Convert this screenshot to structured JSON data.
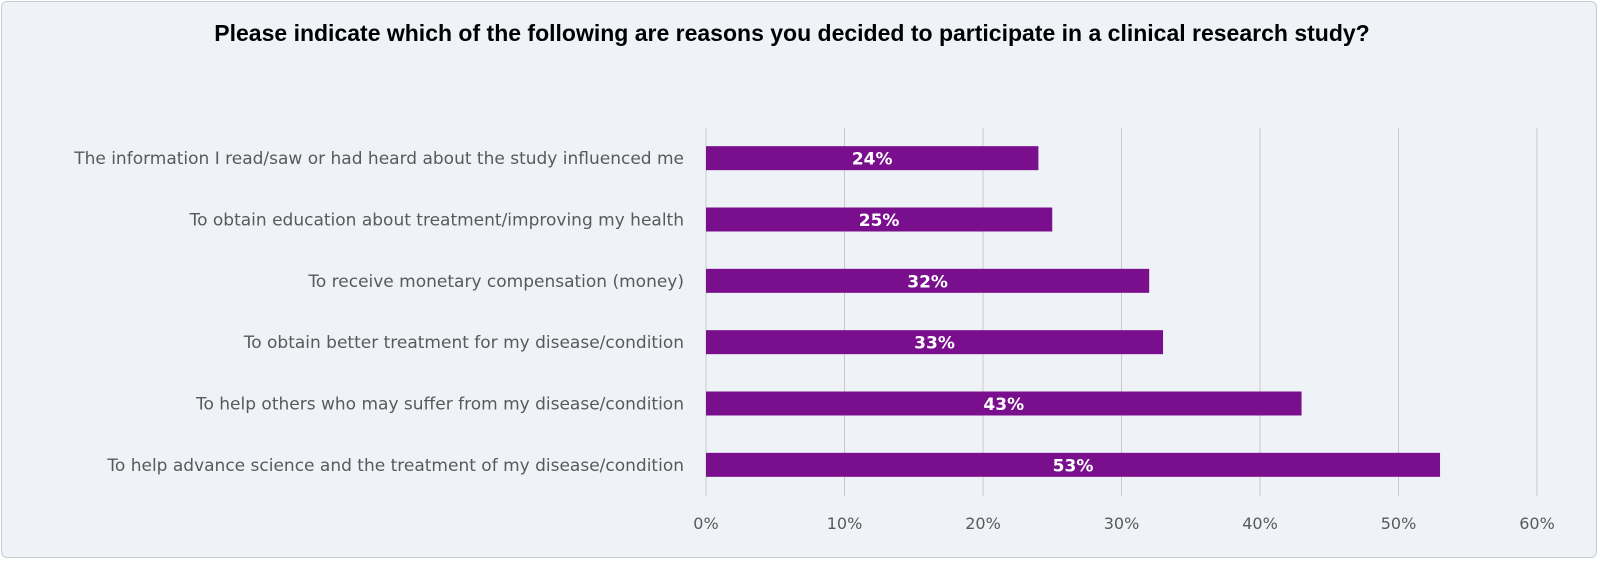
{
  "chart_data": {
    "type": "bar",
    "orientation": "horizontal",
    "title": "Please indicate which of the following are reasons you decided to participate in a clinical research study?",
    "categories": [
      "The information I read/saw or had heard about the study influenced me",
      "To obtain education about treatment/improving my health",
      "To receive monetary compensation (money)",
      "To obtain better treatment for my disease/condition",
      "To help others who may suffer from my disease/condition",
      "To help advance science and the treatment of my disease/condition"
    ],
    "values": [
      24,
      25,
      32,
      33,
      43,
      53
    ],
    "data_labels": [
      "24%",
      "25%",
      "32%",
      "33%",
      "43%",
      "53%"
    ],
    "xlim": [
      0,
      60
    ],
    "xticks": [
      0,
      10,
      20,
      30,
      40,
      50,
      60
    ],
    "xtick_labels": [
      "0%",
      "10%",
      "20%",
      "30%",
      "40%",
      "50%",
      "60%"
    ],
    "xlabel": "",
    "ylabel": "",
    "grid": true,
    "legend": "none",
    "bar_color": "#7a0f8e",
    "background_color": "#eff3f8"
  }
}
